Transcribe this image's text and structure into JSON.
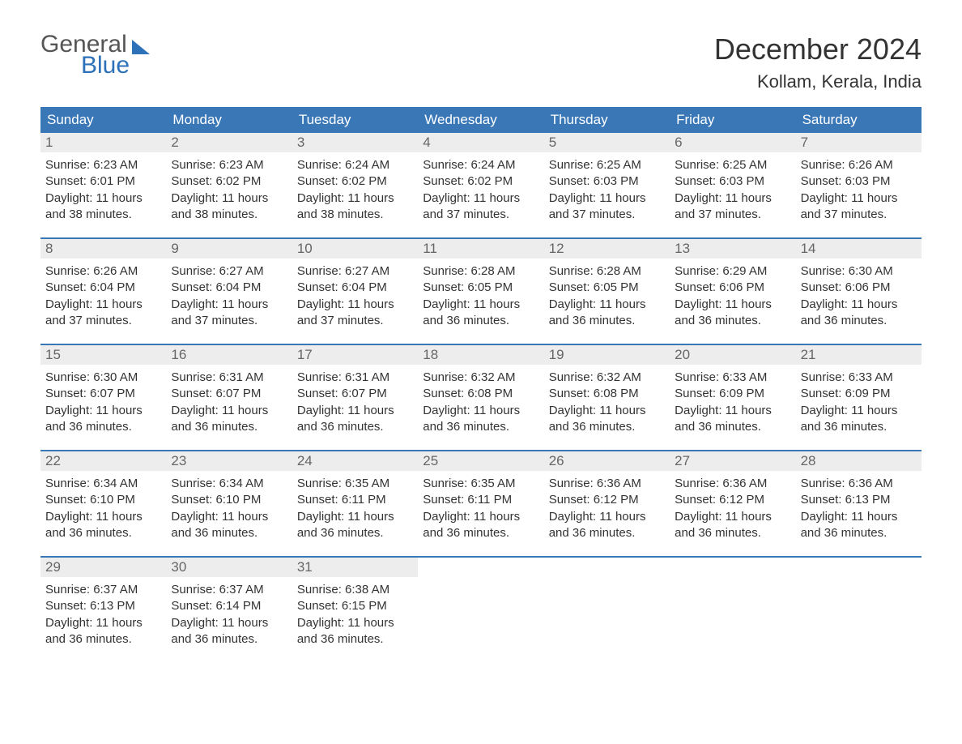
{
  "logo": {
    "word1": "General",
    "word2": "Blue"
  },
  "header": {
    "title": "December 2024",
    "location": "Kollam, Kerala, India"
  },
  "colors": {
    "header_bar": "#3a77b7",
    "header_text": "#ffffff",
    "daynum_bg": "#ededed",
    "daynum_text": "#666666",
    "body_text": "#333333",
    "week_border": "#3a77b7",
    "logo_blue": "#2d72b8"
  },
  "typography": {
    "title_fontsize": 36,
    "location_fontsize": 22,
    "dow_fontsize": 17,
    "daynum_fontsize": 17,
    "body_fontsize": 15
  },
  "layout": {
    "columns": 7,
    "weeks": 5,
    "cell_aspect": "auto"
  },
  "days_of_week": [
    "Sunday",
    "Monday",
    "Tuesday",
    "Wednesday",
    "Thursday",
    "Friday",
    "Saturday"
  ],
  "labels": {
    "sunrise": "Sunrise:",
    "sunset": "Sunset:",
    "daylight_prefix": "Daylight:"
  },
  "days": [
    {
      "n": 1,
      "sunrise": "6:23 AM",
      "sunset": "6:01 PM",
      "daylight": "11 hours and 38 minutes."
    },
    {
      "n": 2,
      "sunrise": "6:23 AM",
      "sunset": "6:02 PM",
      "daylight": "11 hours and 38 minutes."
    },
    {
      "n": 3,
      "sunrise": "6:24 AM",
      "sunset": "6:02 PM",
      "daylight": "11 hours and 38 minutes."
    },
    {
      "n": 4,
      "sunrise": "6:24 AM",
      "sunset": "6:02 PM",
      "daylight": "11 hours and 37 minutes."
    },
    {
      "n": 5,
      "sunrise": "6:25 AM",
      "sunset": "6:03 PM",
      "daylight": "11 hours and 37 minutes."
    },
    {
      "n": 6,
      "sunrise": "6:25 AM",
      "sunset": "6:03 PM",
      "daylight": "11 hours and 37 minutes."
    },
    {
      "n": 7,
      "sunrise": "6:26 AM",
      "sunset": "6:03 PM",
      "daylight": "11 hours and 37 minutes."
    },
    {
      "n": 8,
      "sunrise": "6:26 AM",
      "sunset": "6:04 PM",
      "daylight": "11 hours and 37 minutes."
    },
    {
      "n": 9,
      "sunrise": "6:27 AM",
      "sunset": "6:04 PM",
      "daylight": "11 hours and 37 minutes."
    },
    {
      "n": 10,
      "sunrise": "6:27 AM",
      "sunset": "6:04 PM",
      "daylight": "11 hours and 37 minutes."
    },
    {
      "n": 11,
      "sunrise": "6:28 AM",
      "sunset": "6:05 PM",
      "daylight": "11 hours and 36 minutes."
    },
    {
      "n": 12,
      "sunrise": "6:28 AM",
      "sunset": "6:05 PM",
      "daylight": "11 hours and 36 minutes."
    },
    {
      "n": 13,
      "sunrise": "6:29 AM",
      "sunset": "6:06 PM",
      "daylight": "11 hours and 36 minutes."
    },
    {
      "n": 14,
      "sunrise": "6:30 AM",
      "sunset": "6:06 PM",
      "daylight": "11 hours and 36 minutes."
    },
    {
      "n": 15,
      "sunrise": "6:30 AM",
      "sunset": "6:07 PM",
      "daylight": "11 hours and 36 minutes."
    },
    {
      "n": 16,
      "sunrise": "6:31 AM",
      "sunset": "6:07 PM",
      "daylight": "11 hours and 36 minutes."
    },
    {
      "n": 17,
      "sunrise": "6:31 AM",
      "sunset": "6:07 PM",
      "daylight": "11 hours and 36 minutes."
    },
    {
      "n": 18,
      "sunrise": "6:32 AM",
      "sunset": "6:08 PM",
      "daylight": "11 hours and 36 minutes."
    },
    {
      "n": 19,
      "sunrise": "6:32 AM",
      "sunset": "6:08 PM",
      "daylight": "11 hours and 36 minutes."
    },
    {
      "n": 20,
      "sunrise": "6:33 AM",
      "sunset": "6:09 PM",
      "daylight": "11 hours and 36 minutes."
    },
    {
      "n": 21,
      "sunrise": "6:33 AM",
      "sunset": "6:09 PM",
      "daylight": "11 hours and 36 minutes."
    },
    {
      "n": 22,
      "sunrise": "6:34 AM",
      "sunset": "6:10 PM",
      "daylight": "11 hours and 36 minutes."
    },
    {
      "n": 23,
      "sunrise": "6:34 AM",
      "sunset": "6:10 PM",
      "daylight": "11 hours and 36 minutes."
    },
    {
      "n": 24,
      "sunrise": "6:35 AM",
      "sunset": "6:11 PM",
      "daylight": "11 hours and 36 minutes."
    },
    {
      "n": 25,
      "sunrise": "6:35 AM",
      "sunset": "6:11 PM",
      "daylight": "11 hours and 36 minutes."
    },
    {
      "n": 26,
      "sunrise": "6:36 AM",
      "sunset": "6:12 PM",
      "daylight": "11 hours and 36 minutes."
    },
    {
      "n": 27,
      "sunrise": "6:36 AM",
      "sunset": "6:12 PM",
      "daylight": "11 hours and 36 minutes."
    },
    {
      "n": 28,
      "sunrise": "6:36 AM",
      "sunset": "6:13 PM",
      "daylight": "11 hours and 36 minutes."
    },
    {
      "n": 29,
      "sunrise": "6:37 AM",
      "sunset": "6:13 PM",
      "daylight": "11 hours and 36 minutes."
    },
    {
      "n": 30,
      "sunrise": "6:37 AM",
      "sunset": "6:14 PM",
      "daylight": "11 hours and 36 minutes."
    },
    {
      "n": 31,
      "sunrise": "6:38 AM",
      "sunset": "6:15 PM",
      "daylight": "11 hours and 36 minutes."
    }
  ]
}
